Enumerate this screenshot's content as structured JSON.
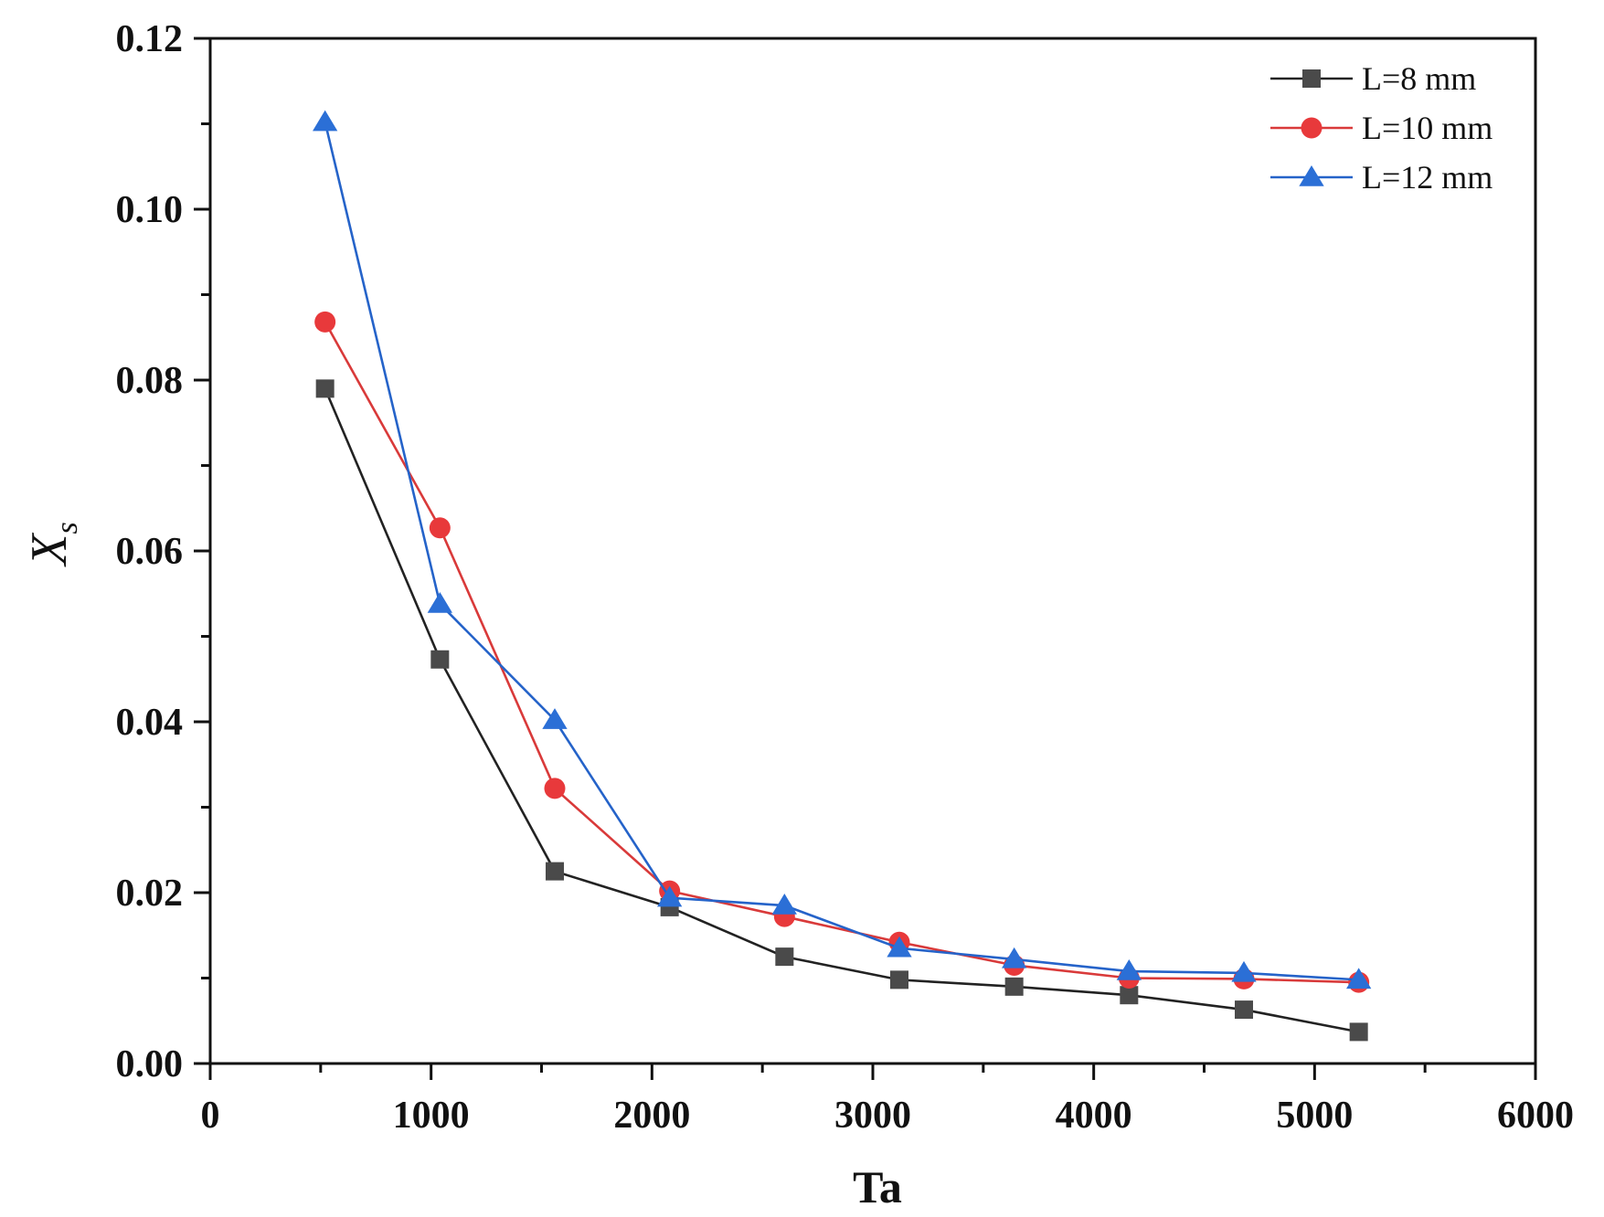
{
  "chart_data": {
    "type": "line",
    "title": "",
    "xlabel": "Ta",
    "ylabel": "X",
    "ylabel_subscript": "s",
    "xlim": [
      0,
      6000
    ],
    "ylim": [
      0,
      0.12
    ],
    "x_ticks": [
      "0",
      "1000",
      "2000",
      "3000",
      "4000",
      "5000",
      "6000"
    ],
    "y_ticks": [
      "0.00",
      "0.02",
      "0.04",
      "0.06",
      "0.08",
      "0.10",
      "0.12"
    ],
    "grid": false,
    "legend_position": "top-right",
    "x": [
      520,
      1040,
      1560,
      2080,
      2600,
      3120,
      3640,
      4160,
      4680,
      5200
    ],
    "series": [
      {
        "name": "L=8 mm",
        "color": "#4a4a4a",
        "line_color": "#222222",
        "marker": "square",
        "values": [
          0.079,
          0.0473,
          0.0225,
          0.0183,
          0.0125,
          0.0098,
          0.009,
          0.008,
          0.0063,
          0.0037
        ]
      },
      {
        "name": "L=10 mm",
        "color": "#e8393b",
        "line_color": "#d93a3a",
        "marker": "circle",
        "values": [
          0.0868,
          0.0627,
          0.0322,
          0.0202,
          0.0172,
          0.0142,
          0.0115,
          0.01,
          0.0099,
          0.0095
        ]
      },
      {
        "name": "L=12 mm",
        "color": "#2b6fd6",
        "line_color": "#2563c9",
        "marker": "triangle",
        "values": [
          0.1102,
          0.0538,
          0.0402,
          0.0194,
          0.0185,
          0.0135,
          0.0122,
          0.0108,
          0.0106,
          0.0098
        ]
      }
    ]
  }
}
